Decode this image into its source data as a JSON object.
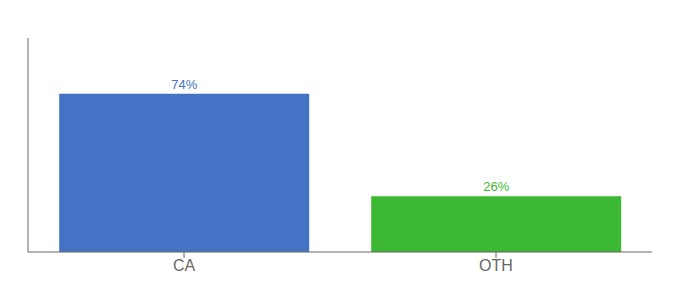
{
  "chart_data": {
    "type": "bar",
    "categories": [
      "CA",
      "OTH"
    ],
    "values": [
      74,
      26
    ],
    "colors": [
      "#4472c4",
      "#3cb832"
    ],
    "value_labels": [
      "74%",
      "26%"
    ],
    "data_labels": true,
    "ylim": [
      0,
      100
    ],
    "yticks": [],
    "tick_labels": "x",
    "grid": false
  }
}
